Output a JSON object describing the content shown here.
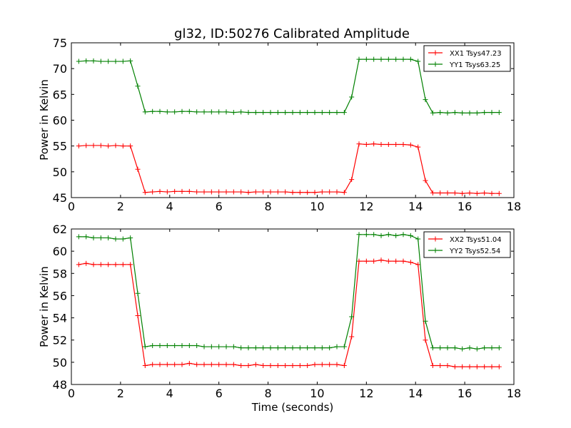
{
  "chart_data": [
    {
      "type": "line",
      "title": "gl32, ID:50276 Calibrated Amplitude",
      "xlabel": "",
      "ylabel": "Power in Kelvin",
      "xlim": [
        0,
        18
      ],
      "ylim": [
        45,
        75
      ],
      "xticks": [
        "0",
        "2",
        "4",
        "6",
        "8",
        "10",
        "12",
        "14",
        "16",
        "18"
      ],
      "yticks": [
        "45",
        "50",
        "55",
        "60",
        "65",
        "70",
        "75"
      ],
      "legend_position": "top-right",
      "x": [
        0.3,
        0.6,
        0.9,
        1.2,
        1.5,
        1.8,
        2.1,
        2.4,
        2.7,
        3.0,
        3.3,
        3.6,
        3.9,
        4.2,
        4.5,
        4.8,
        5.1,
        5.4,
        5.7,
        6.0,
        6.3,
        6.6,
        6.9,
        7.2,
        7.5,
        7.8,
        8.1,
        8.4,
        8.7,
        9.0,
        9.3,
        9.6,
        9.9,
        10.2,
        10.5,
        10.8,
        11.1,
        11.4,
        11.7,
        12.0,
        12.3,
        12.6,
        12.9,
        13.2,
        13.5,
        13.8,
        14.1,
        14.4,
        14.7,
        15.0,
        15.3,
        15.6,
        15.9,
        16.2,
        16.5,
        16.8,
        17.1,
        17.4
      ],
      "series": [
        {
          "name": "XX1 Tsys47.23",
          "color": "#ff0000",
          "values": [
            55.0,
            55.1,
            55.1,
            55.1,
            55.0,
            55.1,
            55.0,
            55.0,
            50.5,
            46.0,
            46.1,
            46.2,
            46.1,
            46.2,
            46.2,
            46.2,
            46.1,
            46.1,
            46.1,
            46.1,
            46.1,
            46.1,
            46.1,
            46.0,
            46.1,
            46.1,
            46.1,
            46.1,
            46.1,
            46.0,
            46.0,
            46.0,
            46.0,
            46.1,
            46.1,
            46.1,
            46.0,
            48.5,
            55.4,
            55.3,
            55.4,
            55.3,
            55.3,
            55.3,
            55.3,
            55.2,
            54.8,
            48.3,
            45.9,
            45.9,
            45.9,
            45.9,
            45.8,
            45.9,
            45.8,
            45.9,
            45.8,
            45.8
          ]
        },
        {
          "name": "YY1 Tsys63.25",
          "color": "#008000",
          "values": [
            71.4,
            71.5,
            71.5,
            71.4,
            71.4,
            71.4,
            71.4,
            71.5,
            66.6,
            61.6,
            61.7,
            61.7,
            61.6,
            61.6,
            61.7,
            61.7,
            61.6,
            61.6,
            61.6,
            61.6,
            61.6,
            61.5,
            61.6,
            61.5,
            61.5,
            61.5,
            61.5,
            61.5,
            61.5,
            61.5,
            61.5,
            61.5,
            61.5,
            61.5,
            61.5,
            61.5,
            61.5,
            64.5,
            71.8,
            71.8,
            71.8,
            71.8,
            71.8,
            71.8,
            71.8,
            71.8,
            71.4,
            64.0,
            61.4,
            61.5,
            61.4,
            61.5,
            61.4,
            61.4,
            61.4,
            61.5,
            61.5,
            61.5
          ]
        }
      ]
    },
    {
      "type": "line",
      "title": "",
      "xlabel": "Time (seconds)",
      "ylabel": "Power in Kelvin",
      "xlim": [
        0,
        18
      ],
      "ylim": [
        48,
        62
      ],
      "xticks": [
        "0",
        "2",
        "4",
        "6",
        "8",
        "10",
        "12",
        "14",
        "16",
        "18"
      ],
      "yticks": [
        "48",
        "50",
        "52",
        "54",
        "56",
        "58",
        "60",
        "62"
      ],
      "legend_position": "top-right",
      "x": [
        0.3,
        0.6,
        0.9,
        1.2,
        1.5,
        1.8,
        2.1,
        2.4,
        2.7,
        3.0,
        3.3,
        3.6,
        3.9,
        4.2,
        4.5,
        4.8,
        5.1,
        5.4,
        5.7,
        6.0,
        6.3,
        6.6,
        6.9,
        7.2,
        7.5,
        7.8,
        8.1,
        8.4,
        8.7,
        9.0,
        9.3,
        9.6,
        9.9,
        10.2,
        10.5,
        10.8,
        11.1,
        11.4,
        11.7,
        12.0,
        12.3,
        12.6,
        12.9,
        13.2,
        13.5,
        13.8,
        14.1,
        14.4,
        14.7,
        15.0,
        15.3,
        15.6,
        15.9,
        16.2,
        16.5,
        16.8,
        17.1,
        17.4
      ],
      "series": [
        {
          "name": "XX2 Tsys51.04",
          "color": "#ff0000",
          "values": [
            58.8,
            58.9,
            58.8,
            58.8,
            58.8,
            58.8,
            58.8,
            58.8,
            54.2,
            49.7,
            49.8,
            49.8,
            49.8,
            49.8,
            49.8,
            49.9,
            49.8,
            49.8,
            49.8,
            49.8,
            49.8,
            49.8,
            49.7,
            49.7,
            49.8,
            49.7,
            49.7,
            49.7,
            49.7,
            49.7,
            49.7,
            49.7,
            49.8,
            49.8,
            49.8,
            49.8,
            49.7,
            52.3,
            59.1,
            59.1,
            59.1,
            59.2,
            59.1,
            59.1,
            59.1,
            59.0,
            58.8,
            52.0,
            49.7,
            49.7,
            49.7,
            49.6,
            49.6,
            49.6,
            49.6,
            49.6,
            49.6,
            49.6
          ]
        },
        {
          "name": "YY2 Tsys52.54",
          "color": "#008000",
          "values": [
            61.3,
            61.3,
            61.2,
            61.2,
            61.2,
            61.1,
            61.1,
            61.2,
            56.2,
            51.4,
            51.5,
            51.5,
            51.5,
            51.5,
            51.5,
            51.5,
            51.5,
            51.4,
            51.4,
            51.4,
            51.4,
            51.4,
            51.3,
            51.3,
            51.3,
            51.3,
            51.3,
            51.3,
            51.3,
            51.3,
            51.3,
            51.3,
            51.3,
            51.3,
            51.3,
            51.4,
            51.4,
            54.1,
            61.5,
            61.5,
            61.5,
            61.4,
            61.5,
            61.4,
            61.5,
            61.4,
            61.1,
            53.7,
            51.3,
            51.3,
            51.3,
            51.3,
            51.2,
            51.3,
            51.2,
            51.3,
            51.3,
            51.3
          ]
        }
      ]
    }
  ]
}
